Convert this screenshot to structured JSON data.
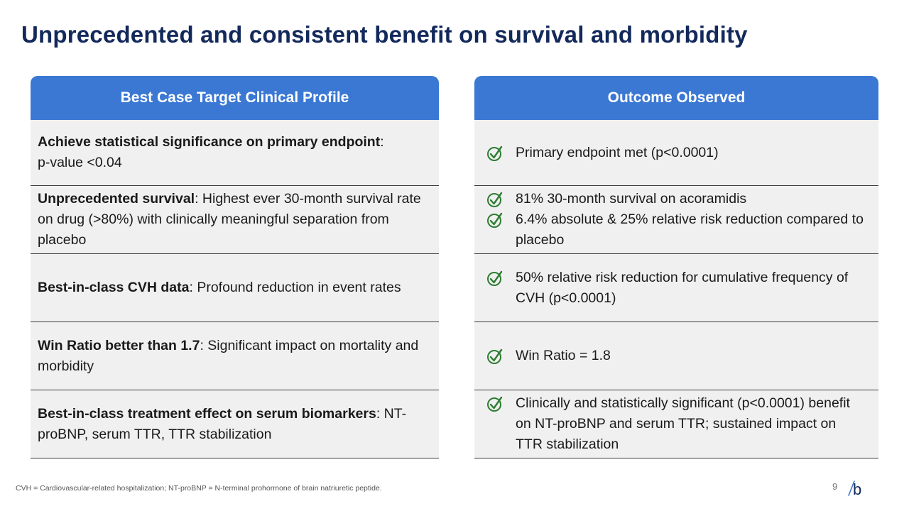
{
  "title": "Unprecedented and consistent benefit on survival and morbidity",
  "left_header": "Best Case Target Clinical Profile",
  "right_header": "Outcome Observed",
  "left_rows": [
    {
      "bold": "Achieve statistical significance on primary endpoint",
      "rest": ":\np-value <0.04"
    },
    {
      "bold": "Unprecedented survival",
      "rest": ": Highest ever 30-month survival rate on drug (>80%) with clinically meaningful separation from placebo"
    },
    {
      "bold": "Best-in-class CVH data",
      "rest": ": Profound reduction in event rates"
    },
    {
      "bold": "Win Ratio better than 1.7",
      "rest": ": Significant impact on mortality and morbidity"
    },
    {
      "bold": "Best-in-class treatment effect on serum biomarkers",
      "rest": ": NT-proBNP, serum TTR, TTR stabilization"
    }
  ],
  "right_rows": [
    {
      "items": [
        "Primary endpoint met (p<0.0001)"
      ]
    },
    {
      "items": [
        "81% 30-month survival on acoramidis",
        "6.4% absolute & 25% relative risk reduction compared to placebo"
      ]
    },
    {
      "items": [
        "50% relative risk reduction for cumulative frequency of CVH (p<0.0001)"
      ]
    },
    {
      "items": [
        "Win Ratio = 1.8"
      ]
    },
    {
      "items": [
        "Clinically and statistically significant (p<0.0001) benefit on NT-proBNP and serum TTR; sustained impact on TTR stabilization"
      ]
    }
  ],
  "check_icon": "check-circle-icon",
  "colors": {
    "title": "#13295b",
    "header": "#3b78d4",
    "check": "#2e7d32",
    "logo": "#3b78d4"
  },
  "footnote": "CVH = Cardiovascular-related hospitalization; NT-proBNP = N-terminal prohormone of brain natriuretic peptide.",
  "page_number": "9",
  "logo_text": "b"
}
